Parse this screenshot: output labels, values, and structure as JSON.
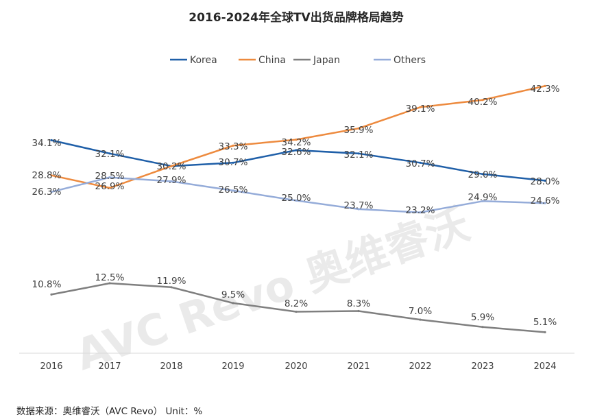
{
  "chart_data": {
    "type": "line",
    "title": "2016-2024年全球TV出货品牌格局趋势",
    "categories": [
      "2016",
      "2017",
      "2018",
      "2019",
      "2020",
      "2021",
      "2022",
      "2023",
      "2024"
    ],
    "series": [
      {
        "name": "Korea",
        "color": "#1f5fa8",
        "values": [
          34.1,
          32.1,
          30.2,
          30.7,
          32.6,
          32.1,
          30.7,
          29.0,
          28.0
        ]
      },
      {
        "name": "China",
        "color": "#ed8a3e",
        "values": [
          28.8,
          26.9,
          30.2,
          33.3,
          34.2,
          35.9,
          39.1,
          40.2,
          42.3
        ]
      },
      {
        "name": "Japan",
        "color": "#7f7f7f",
        "values": [
          10.8,
          12.5,
          11.9,
          9.5,
          8.2,
          8.3,
          7.0,
          5.9,
          5.1
        ]
      },
      {
        "name": "Others",
        "color": "#95acd9",
        "values": [
          26.3,
          28.5,
          27.9,
          26.5,
          25.0,
          23.7,
          23.2,
          24.9,
          24.6
        ]
      }
    ],
    "labels": {
      "Korea": [
        "34.1%",
        "32.1%",
        "30.2%",
        "30.7%",
        "32.6%",
        "32.1%",
        "30.7%",
        "29.0%",
        "28.0%"
      ],
      "China": [
        "28.8%",
        "26.9%",
        "",
        "33.3%",
        "34.2%",
        "35.9%",
        "39.1%",
        "40.2%",
        "42.3%"
      ],
      "Japan": [
        "10.8%",
        "12.5%",
        "11.9%",
        "9.5%",
        "8.2%",
        "8.3%",
        "7.0%",
        "5.9%",
        "5.1%"
      ],
      "Others": [
        "26.3%",
        "28.5%",
        "27.9%",
        "26.5%",
        "25.0%",
        "23.7%",
        "23.2%",
        "24.9%",
        "24.6%"
      ]
    },
    "ylim": [
      0,
      45
    ],
    "grid": false,
    "legend_position": "top"
  },
  "source_text": "数据来源：奥维睿沃（AVC Revo） Unit：%",
  "watermark": "AVC Revo 奥维睿沃"
}
